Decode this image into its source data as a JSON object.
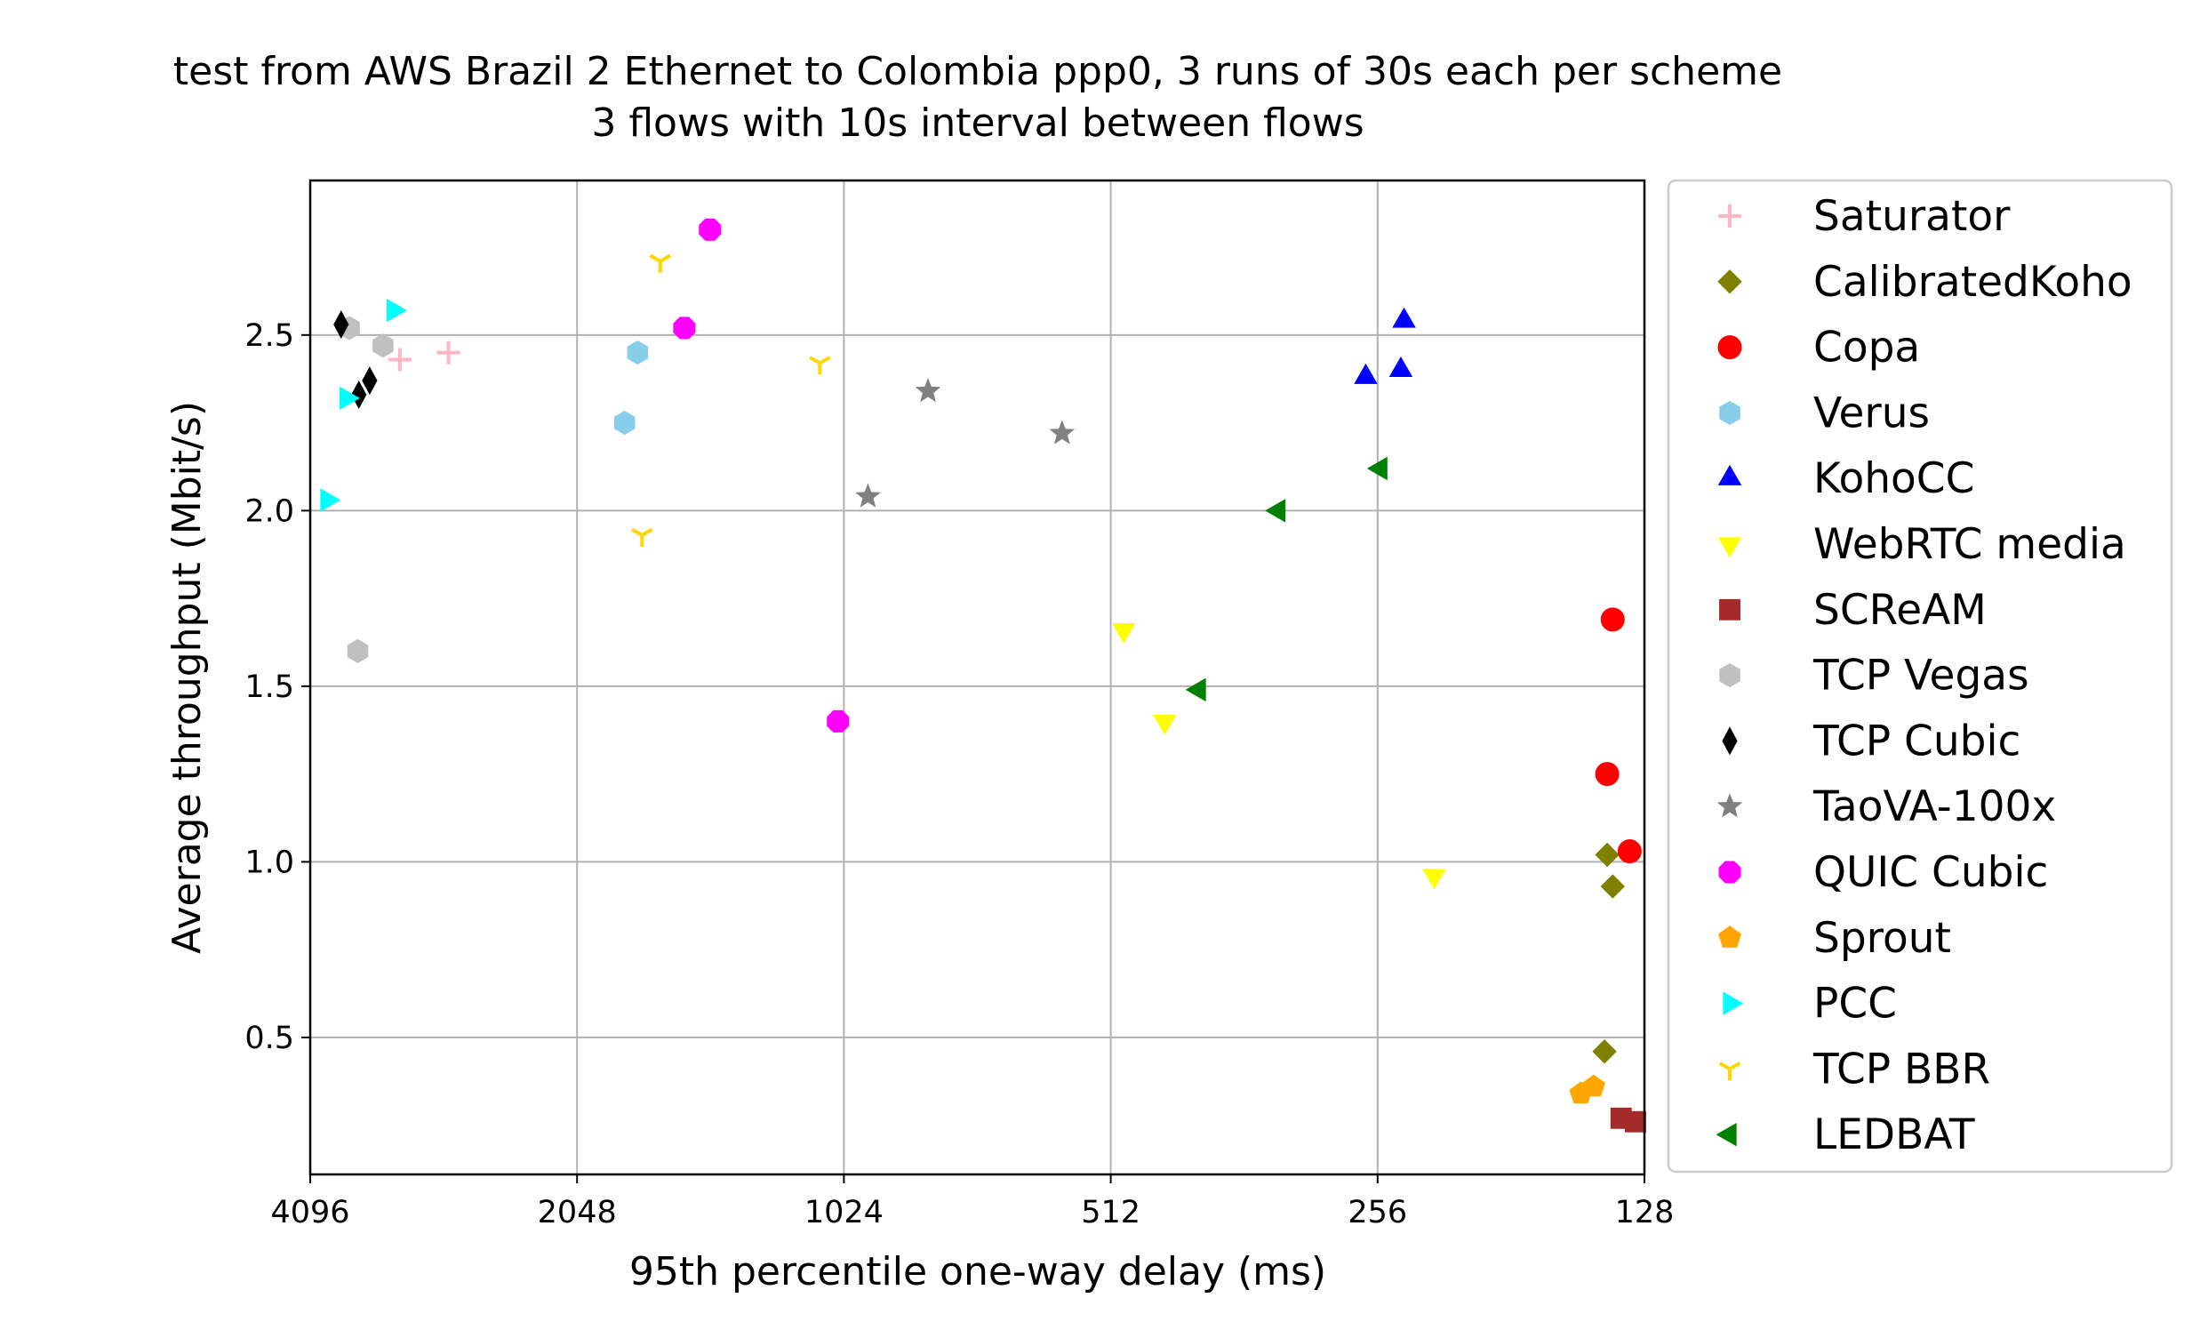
{
  "chart_data": {
    "type": "scatter",
    "title": "test from AWS Brazil 2 Ethernet to Colombia ppp0, 3 runs of 30s each per scheme",
    "subtitle": "3 flows with 10s interval between flows",
    "xlabel": "95th percentile one-way delay (ms)",
    "ylabel": "Average throughput (Mbit/s)",
    "x_scale": "log2",
    "x_inverted": true,
    "xlim": [
      4096,
      128
    ],
    "ylim": [
      0.11,
      2.94
    ],
    "x_ticks": [
      4096,
      2048,
      1024,
      512,
      256,
      128
    ],
    "x_tick_labels": [
      "4096",
      "2048",
      "1024",
      "512",
      "256",
      "128"
    ],
    "y_ticks": [
      0.5,
      1.0,
      1.5,
      2.0,
      2.5
    ],
    "y_tick_labels": [
      "0.5",
      "1.0",
      "1.5",
      "2.0",
      "2.5"
    ],
    "grid": true,
    "legend_position": "outside right",
    "series": [
      {
        "name": "Saturator",
        "marker": "plus",
        "color": "#ffb6c1",
        "points": [
          [
            3245,
            2.43
          ],
          [
            2860,
            2.45
          ]
        ]
      },
      {
        "name": "CalibratedKoho",
        "marker": "diamond",
        "color": "#808000",
        "points": [
          [
            141,
            1.02
          ],
          [
            139,
            0.93
          ],
          [
            142,
            0.46
          ]
        ]
      },
      {
        "name": "Copa",
        "marker": "circle",
        "color": "#ff0000",
        "points": [
          [
            139,
            1.69
          ],
          [
            141,
            1.25
          ],
          [
            133,
            1.03
          ]
        ]
      },
      {
        "name": "Verus",
        "marker": "hexagon",
        "color": "#87ceeb",
        "points": [
          [
            1750,
            2.45
          ],
          [
            1810,
            2.25
          ]
        ]
      },
      {
        "name": "KohoCC",
        "marker": "triangle-up",
        "color": "#0000ff",
        "points": [
          [
            264,
            2.38
          ],
          [
            241,
            2.4
          ],
          [
            239,
            2.54
          ]
        ]
      },
      {
        "name": "WebRTC media",
        "marker": "triangle-down",
        "color": "#ffff00",
        "points": [
          [
            495,
            1.66
          ],
          [
            445,
            1.4
          ],
          [
            221,
            0.96
          ]
        ]
      },
      {
        "name": "SCReAM",
        "marker": "square",
        "color": "#a52a2a",
        "points": [
          [
            136,
            0.27
          ],
          [
            131,
            0.26
          ]
        ]
      },
      {
        "name": "TCP Vegas",
        "marker": "hexagon",
        "color": "#c0c0c0",
        "points": [
          [
            3700,
            2.52
          ],
          [
            3390,
            2.47
          ],
          [
            3620,
            1.6
          ]
        ]
      },
      {
        "name": "TCP Cubic",
        "marker": "thin-diamond",
        "color": "#000000",
        "points": [
          [
            3780,
            2.53
          ],
          [
            3610,
            2.33
          ],
          [
            3510,
            2.37
          ]
        ]
      },
      {
        "name": "TaoVA-100x",
        "marker": "star",
        "color": "#808080",
        "points": [
          [
            823,
            2.34
          ],
          [
            962,
            2.04
          ],
          [
            581,
            2.22
          ]
        ]
      },
      {
        "name": "QUIC Cubic",
        "marker": "octagon",
        "color": "#ff00ff",
        "points": [
          [
            1450,
            2.8
          ],
          [
            1550,
            2.52
          ],
          [
            1040,
            1.4
          ]
        ]
      },
      {
        "name": "Sprout",
        "marker": "pentagon",
        "color": "#ffa500",
        "points": [
          [
            151,
            0.34
          ],
          [
            146,
            0.36
          ]
        ]
      },
      {
        "name": "PCC",
        "marker": "triangle-right",
        "color": "#00ffff",
        "points": [
          [
            3300,
            2.57
          ],
          [
            3730,
            2.32
          ],
          [
            3920,
            2.03
          ]
        ]
      },
      {
        "name": "TCP BBR",
        "marker": "tri-down",
        "color": "#ffd700",
        "points": [
          [
            1650,
            2.71
          ],
          [
            1730,
            1.93
          ],
          [
            1090,
            2.42
          ]
        ]
      },
      {
        "name": "LEDBAT",
        "marker": "triangle-left",
        "color": "#008000",
        "points": [
          [
            254,
            2.12
          ],
          [
            331,
            2.0
          ],
          [
            407,
            1.49
          ]
        ]
      }
    ]
  }
}
